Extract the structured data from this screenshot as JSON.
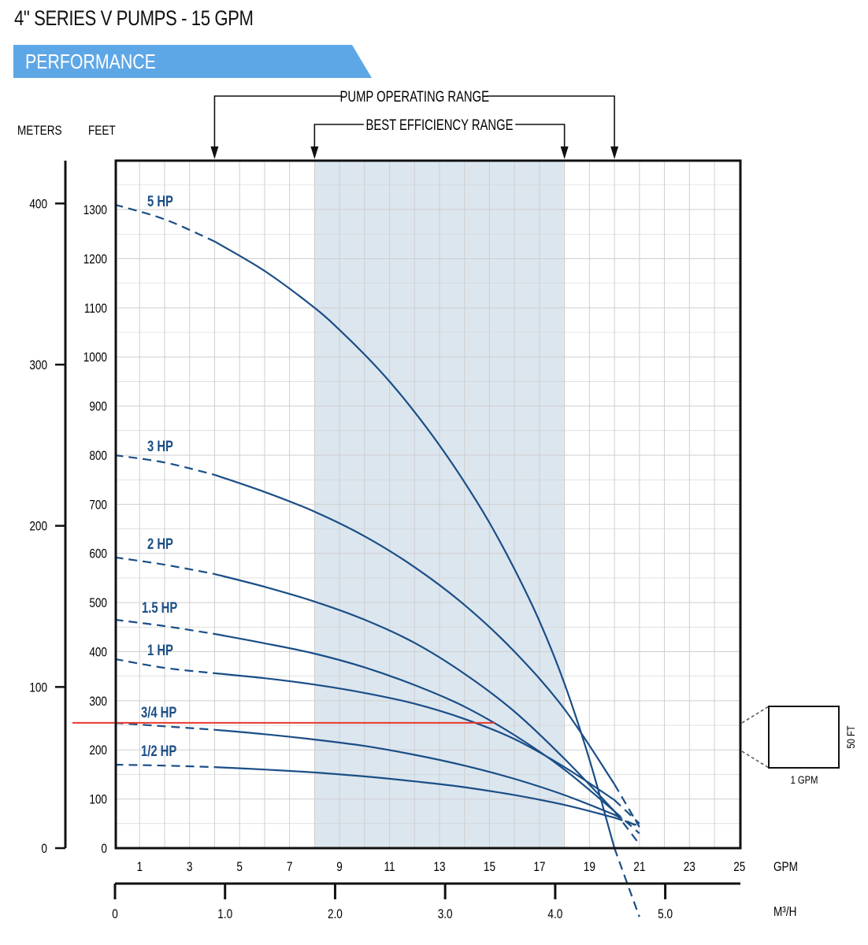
{
  "header": {
    "title": "4\" SERIES V PUMPS - 15 GPM",
    "section": "PERFORMANCE"
  },
  "colors": {
    "banner": "#5ea7e6",
    "curve": "#1a4e86",
    "efficiency_band": "#dce6ef",
    "marker_line": "#e8372c",
    "grid": "#cfcfcf"
  },
  "chart_data": {
    "type": "line",
    "xlabel": "GPM",
    "xlabel2": "M³/H",
    "ylabel_left": "METERS",
    "ylabel_right": "FEET",
    "xlim": [
      0,
      25
    ],
    "ylim_feet": [
      0,
      1400
    ],
    "x_ticks": [
      1,
      3,
      5,
      7,
      9,
      11,
      13,
      15,
      17,
      19,
      21,
      23,
      25
    ],
    "feet_ticks": [
      0,
      100,
      200,
      300,
      400,
      500,
      600,
      700,
      800,
      900,
      1000,
      1100,
      1200,
      1300
    ],
    "meters_ticks": [
      0,
      100,
      200,
      300,
      400
    ],
    "m3h_ticks": [
      "0",
      "1.0",
      "2.0",
      "3.0",
      "4.0",
      "5.0"
    ],
    "pump_operating_range": {
      "label": "PUMP OPERATING RANGE",
      "x": [
        4,
        20
      ]
    },
    "best_efficiency_range": {
      "label": "BEST EFFICIENCY RANGE",
      "x": [
        8,
        18
      ]
    },
    "reference_line": {
      "y": 255,
      "x_end": 15.2
    },
    "scale_box": {
      "x_label": "1 GPM",
      "y_label": "50 FT"
    },
    "series": [
      {
        "name": "5 HP",
        "x": [
          0,
          2,
          4,
          6,
          8,
          9,
          10,
          11,
          12,
          13,
          14,
          15,
          16,
          17,
          18,
          19,
          20,
          21
        ],
        "y": [
          1310,
          1280,
          1235,
          1175,
          1100,
          1055,
          1005,
          950,
          888,
          820,
          745,
          662,
          568,
          462,
          335,
          180,
          0,
          -140
        ]
      },
      {
        "name": "3 HP",
        "x": [
          0,
          2,
          4,
          6,
          8,
          10,
          12,
          14,
          16,
          18,
          20,
          21
        ],
        "y": [
          800,
          785,
          760,
          725,
          685,
          635,
          572,
          495,
          400,
          283,
          130,
          43
        ]
      },
      {
        "name": "2 HP",
        "x": [
          0,
          2,
          4,
          6,
          8,
          10,
          12,
          14,
          16,
          18,
          20,
          21
        ],
        "y": [
          592,
          577,
          558,
          532,
          502,
          465,
          418,
          355,
          278,
          182,
          75,
          8
        ]
      },
      {
        "name": "1.5 HP",
        "x": [
          0,
          2,
          4,
          6,
          8,
          10,
          12,
          14,
          16,
          18,
          20,
          21
        ],
        "y": [
          465,
          452,
          436,
          417,
          396,
          368,
          332,
          288,
          230,
          160,
          75,
          30
        ]
      },
      {
        "name": "1 HP",
        "x": [
          0,
          2,
          4,
          6,
          8,
          10,
          12,
          14,
          16,
          18,
          20,
          21
        ],
        "y": [
          385,
          367,
          356,
          346,
          333,
          316,
          294,
          263,
          222,
          165,
          98,
          50
        ]
      },
      {
        "name": "3/4 HP",
        "x": [
          0,
          2,
          4,
          6,
          8,
          10,
          12,
          14,
          16,
          18,
          20,
          21
        ],
        "y": [
          255,
          248,
          241,
          232,
          221,
          208,
          190,
          168,
          141,
          108,
          68,
          42
        ]
      },
      {
        "name": "1/2 HP",
        "x": [
          0,
          2,
          4,
          6,
          8,
          10,
          12,
          14,
          16,
          18,
          20,
          21
        ],
        "y": [
          170,
          168,
          165,
          160,
          154,
          146,
          136,
          124,
          108,
          88,
          62,
          45
        ]
      }
    ]
  }
}
